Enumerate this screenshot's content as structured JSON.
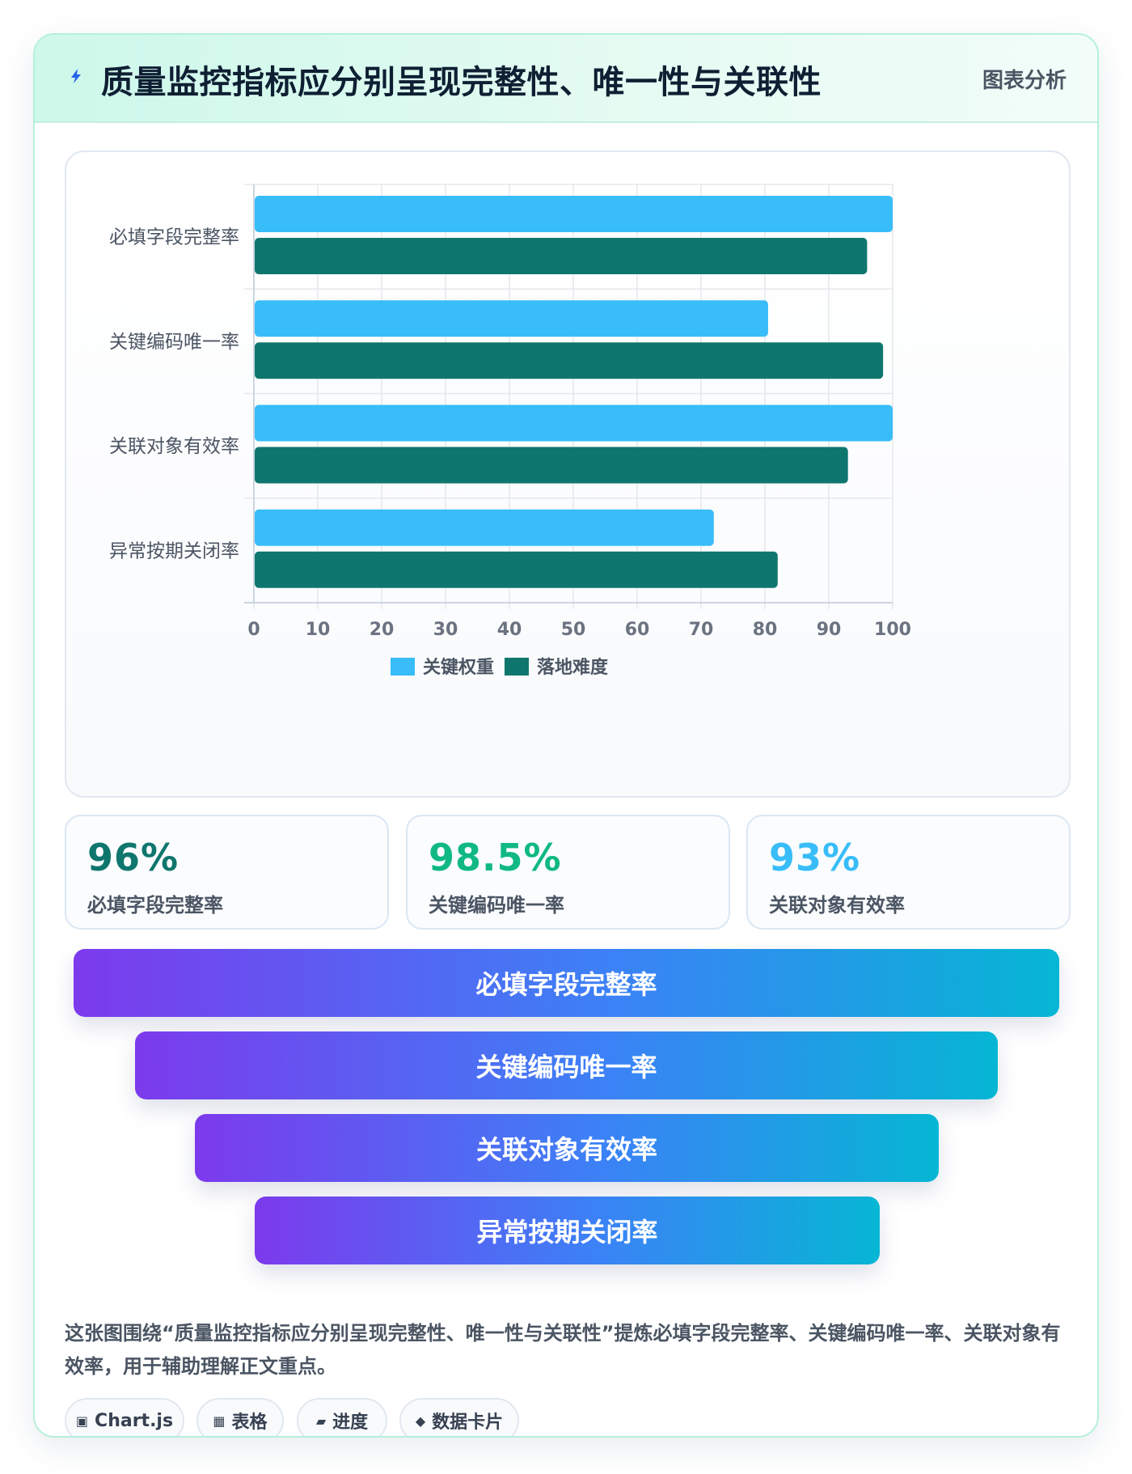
{
  "header": {
    "title": "质量监控指标应分别呈现完整性、唯一性与关联性",
    "tag": "图表分析"
  },
  "chart_data": {
    "type": "bar",
    "orientation": "horizontal",
    "categories": [
      "必填字段完整率",
      "关键编码唯一率",
      "关联对象有效率",
      "异常按期关闭率"
    ],
    "series": [
      {
        "name": "关键权重",
        "values": [
          100,
          80.5,
          100,
          72
        ],
        "color": "#38bdf8"
      },
      {
        "name": "落地难度",
        "values": [
          96,
          98.5,
          93,
          82
        ],
        "color": "#0f766e"
      }
    ],
    "xlim": [
      0,
      100
    ],
    "xticks": [
      0,
      10,
      20,
      30,
      40,
      50,
      60,
      70,
      80,
      90,
      100
    ],
    "grid": true,
    "legend_position": "bottom"
  },
  "stats": [
    {
      "value": "96%",
      "label": "必填字段完整率",
      "color": "#0f766e"
    },
    {
      "value": "98.5%",
      "label": "关键编码唯一率",
      "color": "#10b981"
    },
    {
      "value": "93%",
      "label": "关联对象有效率",
      "color": "#38bdf8"
    }
  ],
  "funnel": [
    "必填字段完整率",
    "关键编码唯一率",
    "关联对象有效率",
    "异常按期关闭率"
  ],
  "description": "这张图围绕“质量监控指标应分别呈现完整性、唯一性与关联性”提炼必填字段完整率、关键编码唯一率、关联对象有效率，用于辅助理解正文重点。",
  "chips": [
    {
      "icon": "▣",
      "icon_name": "chart-icon",
      "label": "Chart.js"
    },
    {
      "icon": "▦",
      "icon_name": "table-icon",
      "label": "表格"
    },
    {
      "icon": "▰",
      "icon_name": "progress-icon",
      "label": "进度"
    },
    {
      "icon": "◆",
      "icon_name": "diamond-icon",
      "label": "数据卡片"
    }
  ]
}
